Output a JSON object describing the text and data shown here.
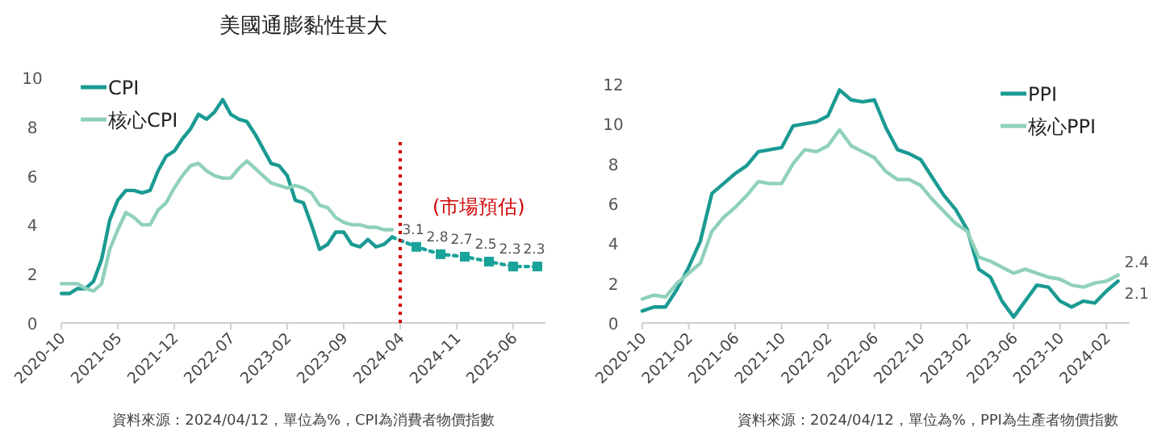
{
  "chart_data": [
    {
      "type": "line",
      "title": "美國通膨黏性甚大",
      "xlim": [
        "2020-10",
        "2025-10"
      ],
      "ylim": [
        0,
        10
      ],
      "yticks": [
        0,
        2,
        4,
        6,
        8,
        10
      ],
      "xticks": [
        "2020-10",
        "2021-05",
        "2021-12",
        "2022-07",
        "2023-02",
        "2023-09",
        "2024-04",
        "2024-11",
        "2025-06"
      ],
      "x": [
        "2020-10",
        "2020-11",
        "2020-12",
        "2021-01",
        "2021-02",
        "2021-03",
        "2021-04",
        "2021-05",
        "2021-06",
        "2021-07",
        "2021-08",
        "2021-09",
        "2021-10",
        "2021-11",
        "2021-12",
        "2022-01",
        "2022-02",
        "2022-03",
        "2022-04",
        "2022-05",
        "2022-06",
        "2022-07",
        "2022-08",
        "2022-09",
        "2022-10",
        "2022-11",
        "2022-12",
        "2023-01",
        "2023-02",
        "2023-03",
        "2023-04",
        "2023-05",
        "2023-06",
        "2023-07",
        "2023-08",
        "2023-09",
        "2023-10",
        "2023-11",
        "2023-12",
        "2024-01",
        "2024-02",
        "2024-03"
      ],
      "series": [
        {
          "name": "CPI",
          "color": "#1a9a92",
          "values": [
            1.2,
            1.2,
            1.4,
            1.4,
            1.7,
            2.6,
            4.2,
            5.0,
            5.4,
            5.4,
            5.3,
            5.4,
            6.2,
            6.8,
            7.0,
            7.5,
            7.9,
            8.5,
            8.3,
            8.6,
            9.1,
            8.5,
            8.3,
            8.2,
            7.7,
            7.1,
            6.5,
            6.4,
            6.0,
            5.0,
            4.9,
            4.0,
            3.0,
            3.2,
            3.7,
            3.7,
            3.2,
            3.1,
            3.4,
            3.1,
            3.2,
            3.5
          ]
        },
        {
          "name": "核心CPI",
          "color": "#8fd0bd",
          "values": [
            1.6,
            1.6,
            1.6,
            1.4,
            1.3,
            1.6,
            3.0,
            3.8,
            4.5,
            4.3,
            4.0,
            4.0,
            4.6,
            4.9,
            5.5,
            6.0,
            6.4,
            6.5,
            6.2,
            6.0,
            5.9,
            5.9,
            6.3,
            6.6,
            6.3,
            6.0,
            5.7,
            5.6,
            5.5,
            5.6,
            5.5,
            5.3,
            4.8,
            4.7,
            4.3,
            4.1,
            4.0,
            4.0,
            3.9,
            3.9,
            3.8,
            3.8
          ]
        },
        {
          "color": "#1aa39a",
          "marker": "square",
          "line_style": "dotted",
          "x": [
            "2024-03",
            "2024-06",
            "2024-09",
            "2024-12",
            "2025-03",
            "2025-06",
            "2025-09"
          ],
          "values": [
            3.5,
            3.1,
            2.8,
            2.7,
            2.5,
            2.3,
            2.3
          ],
          "value_labels": [
            null,
            "3.1",
            "2.8",
            "2.7",
            "2.5",
            "2.3",
            "2.3"
          ]
        }
      ],
      "ref_lines": [
        {
          "axis": "x",
          "value": "2024-04",
          "label": "(市場預估)",
          "color": "#d00000",
          "line_style": "dotted"
        }
      ],
      "legend": "top left",
      "grid": false,
      "marker": "none",
      "line_style": "solid",
      "annotations": [
        "資料來源：2024/04/12，單位為%，CPI為消費者物價指數"
      ]
    },
    {
      "type": "line",
      "xlim": [
        "2020-10",
        "2024-04"
      ],
      "ylim": [
        0,
        12
      ],
      "yticks": [
        0,
        2,
        4,
        6,
        8,
        10,
        12
      ],
      "xticks": [
        "2020-10",
        "2021-02",
        "2021-06",
        "2021-10",
        "2022-02",
        "2022-06",
        "2022-10",
        "2023-02",
        "2023-06",
        "2023-10",
        "2024-02"
      ],
      "x": [
        "2020-10",
        "2020-11",
        "2020-12",
        "2021-01",
        "2021-02",
        "2021-03",
        "2021-04",
        "2021-05",
        "2021-06",
        "2021-07",
        "2021-08",
        "2021-09",
        "2021-10",
        "2021-11",
        "2021-12",
        "2022-01",
        "2022-02",
        "2022-03",
        "2022-04",
        "2022-05",
        "2022-06",
        "2022-07",
        "2022-08",
        "2022-09",
        "2022-10",
        "2022-11",
        "2022-12",
        "2023-01",
        "2023-02",
        "2023-03",
        "2023-04",
        "2023-05",
        "2023-06",
        "2023-07",
        "2023-08",
        "2023-09",
        "2023-10",
        "2023-11",
        "2023-12",
        "2024-01",
        "2024-02",
        "2024-03"
      ],
      "series": [
        {
          "name": "PPI",
          "color": "#1a9a92",
          "values": [
            0.6,
            0.8,
            0.8,
            1.7,
            2.8,
            4.1,
            6.5,
            7.0,
            7.5,
            7.9,
            8.6,
            8.7,
            8.8,
            9.9,
            10.0,
            10.1,
            10.4,
            11.7,
            11.2,
            11.1,
            11.2,
            9.8,
            8.7,
            8.5,
            8.2,
            7.3,
            6.4,
            5.7,
            4.7,
            2.7,
            2.3,
            1.1,
            0.3,
            1.1,
            1.9,
            1.8,
            1.1,
            0.8,
            1.1,
            1.0,
            1.6,
            2.1
          ],
          "value_labels": [
            null,
            null,
            null,
            null,
            null,
            null,
            null,
            null,
            null,
            null,
            null,
            null,
            null,
            null,
            null,
            null,
            null,
            null,
            null,
            null,
            null,
            null,
            null,
            null,
            null,
            null,
            null,
            null,
            null,
            null,
            null,
            null,
            null,
            null,
            null,
            null,
            null,
            null,
            null,
            null,
            null,
            "2.1"
          ]
        },
        {
          "name": "核心PPI",
          "color": "#8fd0bd",
          "values": [
            1.2,
            1.4,
            1.3,
            2.0,
            2.5,
            3.0,
            4.6,
            5.3,
            5.8,
            6.4,
            7.1,
            7.0,
            7.0,
            8.0,
            8.7,
            8.6,
            8.9,
            9.7,
            8.9,
            8.6,
            8.3,
            7.6,
            7.2,
            7.2,
            6.9,
            6.2,
            5.6,
            5.0,
            4.6,
            3.3,
            3.1,
            2.8,
            2.5,
            2.7,
            2.5,
            2.3,
            2.2,
            1.9,
            1.8,
            2.0,
            2.1,
            2.4
          ],
          "value_labels": [
            null,
            null,
            null,
            null,
            null,
            null,
            null,
            null,
            null,
            null,
            null,
            null,
            null,
            null,
            null,
            null,
            null,
            null,
            null,
            null,
            null,
            null,
            null,
            null,
            null,
            null,
            null,
            null,
            null,
            null,
            null,
            null,
            null,
            null,
            null,
            null,
            null,
            null,
            null,
            null,
            null,
            "2.4"
          ]
        }
      ],
      "legend": "top right",
      "grid": false,
      "marker": "none",
      "line_style": "solid",
      "annotations": [
        "資料來源：2024/04/12，單位為%，PPI為生產者物價指數"
      ]
    }
  ]
}
